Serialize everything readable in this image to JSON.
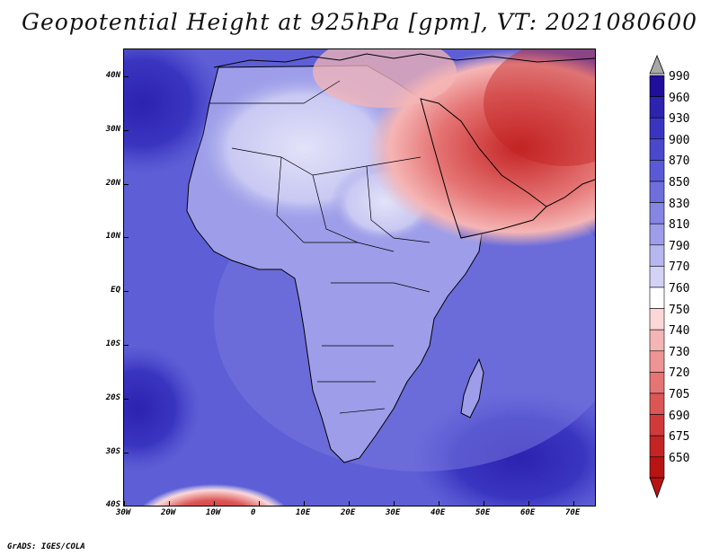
{
  "title": "Geopotential Height at 925hPa [gpm], VT: 2021080600",
  "footer": "GrADS: IGES/COLA",
  "map": {
    "lon_labels": [
      "30W",
      "20W",
      "10W",
      "0",
      "10E",
      "20E",
      "30E",
      "40E",
      "50E",
      "60E",
      "70E"
    ],
    "lat_labels": [
      "40N",
      "30N",
      "20N",
      "10N",
      "EQ",
      "10S",
      "20S",
      "30S",
      "40S"
    ]
  },
  "colorbar": {
    "levels": [
      "990",
      "960",
      "930",
      "900",
      "870",
      "850",
      "830",
      "810",
      "790",
      "770",
      "760",
      "750",
      "740",
      "730",
      "720",
      "705",
      "690",
      "675",
      "650"
    ],
    "colors": [
      "#a8a8a8",
      "#1f0f9a",
      "#2c23b0",
      "#3a35c0",
      "#4a48cc",
      "#5a5ad6",
      "#6e6fdd",
      "#8585e3",
      "#9d9de9",
      "#b7b7f0",
      "#d2d2f6",
      "#ffffff",
      "#fbd7d7",
      "#f5b5b5",
      "#ee9494",
      "#e57474",
      "#dc5656",
      "#d13a3a",
      "#c42424",
      "#b81414"
    ]
  },
  "colors": {
    "ocean": "#5e5fd6",
    "land_mid": "#9d9de9",
    "land_high": "#c8c8f3",
    "low": "#e57474",
    "coast": "#000000"
  }
}
